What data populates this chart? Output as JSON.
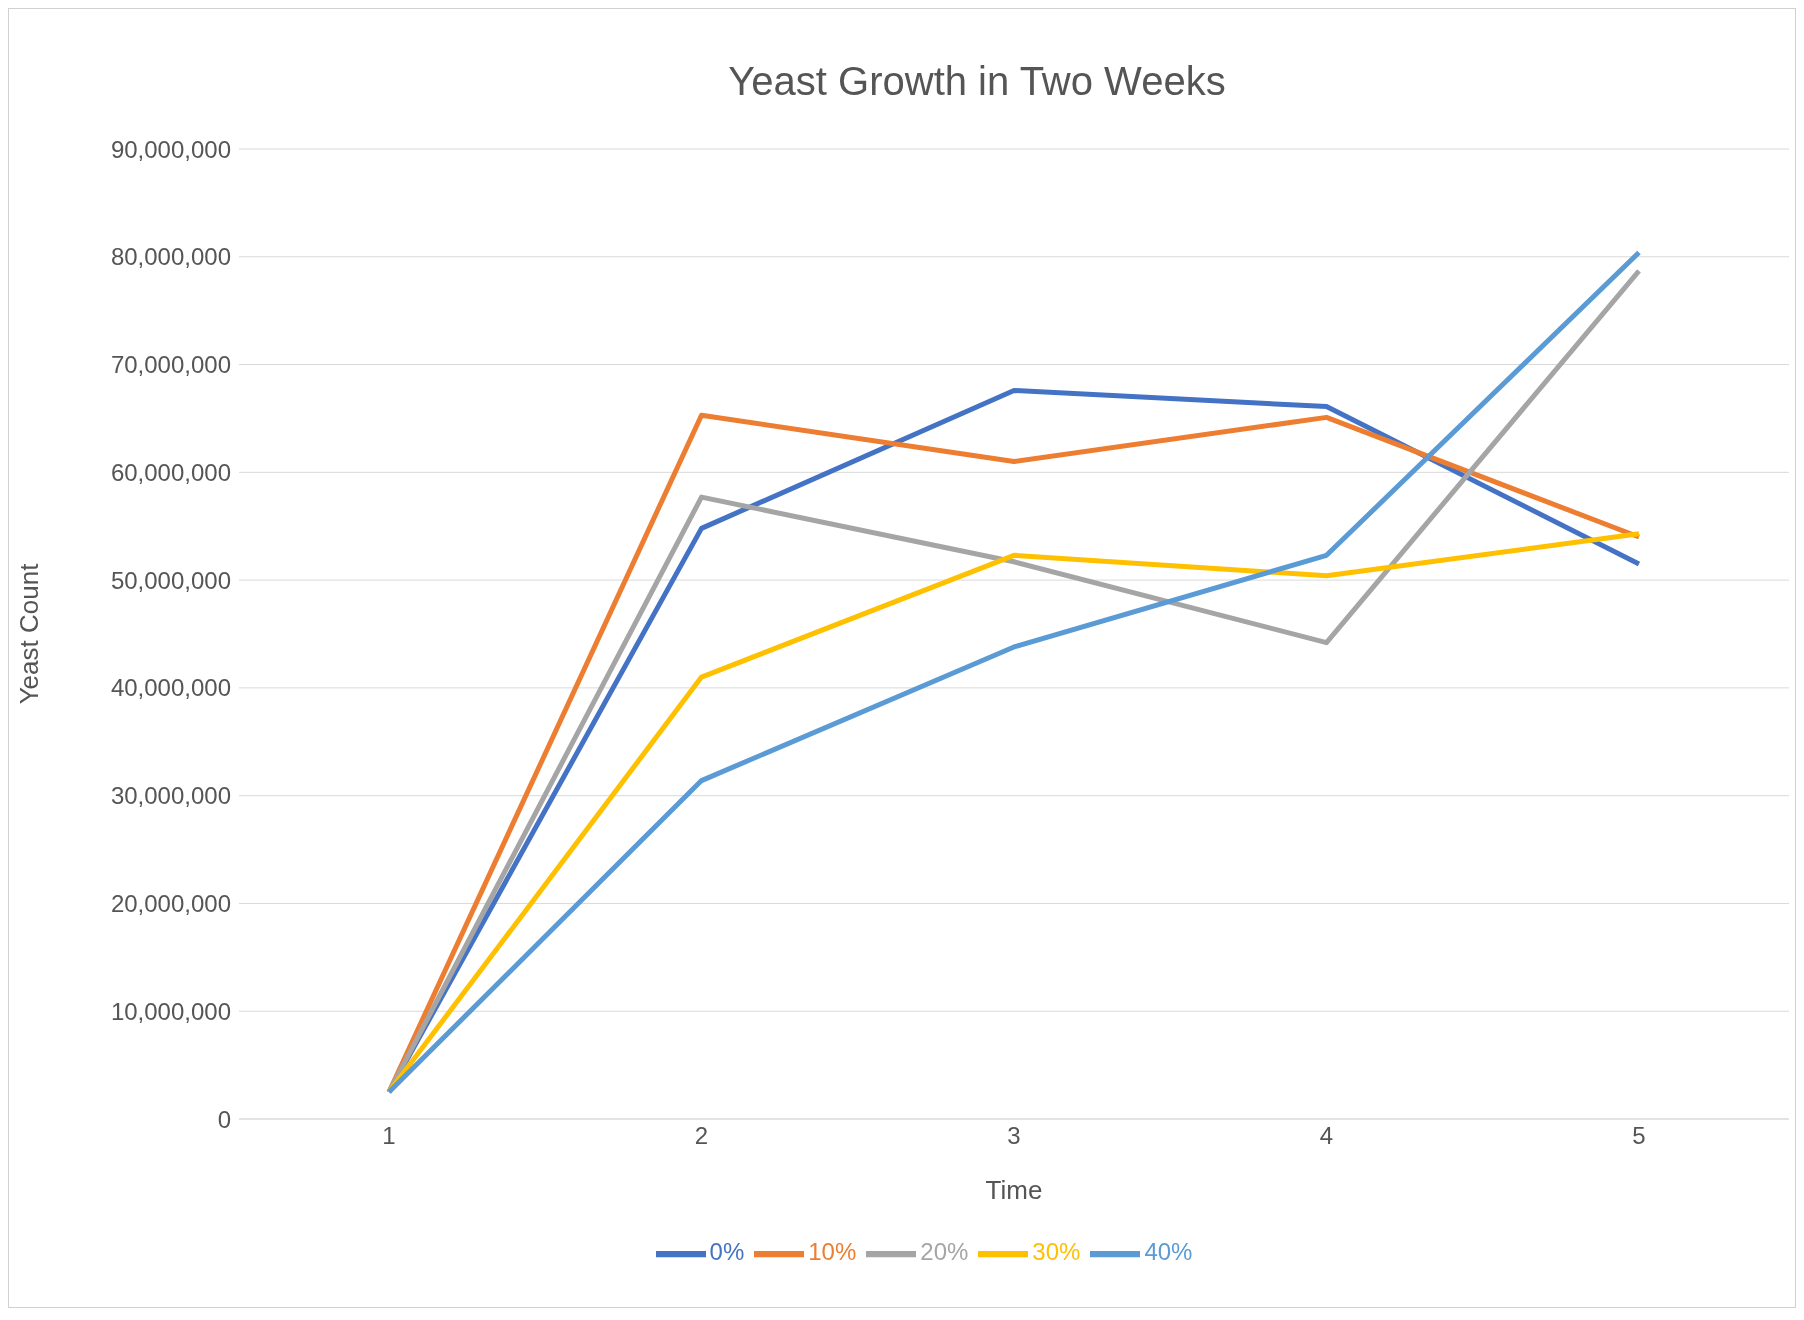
{
  "chart_data": {
    "type": "line",
    "title": "Yeast Growth in Two Weeks",
    "xlabel": "Time",
    "ylabel": "Yeast Count",
    "categories": [
      "1",
      "2",
      "3",
      "4",
      "5"
    ],
    "series": [
      {
        "name": "0%",
        "color": "#4472c4",
        "values": [
          2500000,
          54800000,
          67600000,
          66100000,
          51500000
        ]
      },
      {
        "name": "10%",
        "color": "#ed7d31",
        "values": [
          2500000,
          65300000,
          61000000,
          65100000,
          54000000
        ]
      },
      {
        "name": "20%",
        "color": "#a5a5a5",
        "values": [
          2500000,
          57700000,
          51700000,
          44200000,
          78700000
        ]
      },
      {
        "name": "30%",
        "color": "#ffc000",
        "values": [
          2500000,
          41000000,
          52300000,
          50400000,
          54300000
        ]
      },
      {
        "name": "40%",
        "color": "#5b9bd5",
        "values": [
          2500000,
          31400000,
          43800000,
          52300000,
          80400000
        ]
      }
    ],
    "ylim": [
      0,
      90000000
    ],
    "yticks": [
      {
        "value": 0,
        "label": "0"
      },
      {
        "value": 10000000,
        "label": "10,000,000"
      },
      {
        "value": 20000000,
        "label": "20,000,000"
      },
      {
        "value": 30000000,
        "label": "30,000,000"
      },
      {
        "value": 40000000,
        "label": "40,000,000"
      },
      {
        "value": 50000000,
        "label": "50,000,000"
      },
      {
        "value": 60000000,
        "label": "60,000,000"
      },
      {
        "value": 70000000,
        "label": "70,000,000"
      },
      {
        "value": 80000000,
        "label": "80,000,000"
      },
      {
        "value": 90000000,
        "label": "90,000,000"
      }
    ],
    "grid": "y",
    "legend": "bottom",
    "marker": "none",
    "line_style": "solid"
  }
}
